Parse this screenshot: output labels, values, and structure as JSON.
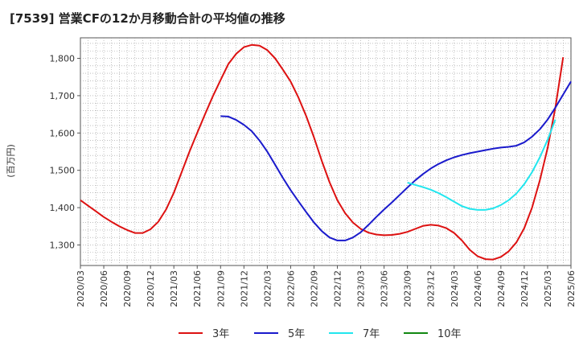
{
  "title": "[7539]  営業CFの12か月移動合計の平均値の推移",
  "chart_data": {
    "type": "line",
    "ylabel": "(百万円)",
    "ylim": [
      1245,
      1855
    ],
    "yticks": [
      1300,
      1400,
      1500,
      1600,
      1700,
      1800
    ],
    "ytick_labels": [
      "1,300",
      "1,400",
      "1,500",
      "1,600",
      "1,700",
      "1,800"
    ],
    "x_start": "2020-03",
    "x_end": "2025-06",
    "x_ticks": [
      "2020/03",
      "2020/06",
      "2020/09",
      "2020/12",
      "2021/03",
      "2021/06",
      "2021/09",
      "2021/12",
      "2022/03",
      "2022/06",
      "2022/09",
      "2022/12",
      "2023/03",
      "2023/06",
      "2023/09",
      "2023/12",
      "2024/03",
      "2024/06",
      "2024/09",
      "2024/12",
      "2025/03",
      "2025/06"
    ],
    "grid": true,
    "legend_position": "bottom",
    "series": [
      {
        "name": "3年",
        "color": "#dd1111",
        "start": "2020-03",
        "values": [
          1420,
          1405,
          1390,
          1375,
          1362,
          1350,
          1340,
          1332,
          1332,
          1342,
          1362,
          1395,
          1440,
          1495,
          1550,
          1600,
          1650,
          1698,
          1742,
          1785,
          1812,
          1830,
          1836,
          1834,
          1822,
          1800,
          1770,
          1738,
          1695,
          1645,
          1588,
          1525,
          1468,
          1420,
          1385,
          1360,
          1343,
          1333,
          1328,
          1326,
          1327,
          1330,
          1335,
          1343,
          1351,
          1354,
          1352,
          1345,
          1332,
          1312,
          1287,
          1270,
          1262,
          1261,
          1268,
          1283,
          1307,
          1345,
          1400,
          1473,
          1560,
          1668,
          1803
        ]
      },
      {
        "name": "5年",
        "color": "#1a1acc",
        "start": "2021-09",
        "values": [
          1645,
          1644,
          1635,
          1622,
          1605,
          1580,
          1550,
          1515,
          1480,
          1447,
          1417,
          1388,
          1360,
          1337,
          1320,
          1312,
          1312,
          1320,
          1334,
          1354,
          1375,
          1395,
          1414,
          1434,
          1454,
          1473,
          1490,
          1505,
          1517,
          1527,
          1535,
          1541,
          1546,
          1550,
          1554,
          1558,
          1561,
          1563,
          1566,
          1575,
          1590,
          1610,
          1636,
          1668,
          1703,
          1738
        ]
      },
      {
        "name": "7年",
        "color": "#22e6ee",
        "start": "2023-09",
        "values": [
          1467,
          1461,
          1455,
          1448,
          1439,
          1428,
          1416,
          1404,
          1397,
          1394,
          1394,
          1398,
          1407,
          1420,
          1438,
          1463,
          1495,
          1535,
          1582,
          1636
        ]
      },
      {
        "name": "10年",
        "color": "#118811",
        "start": "2025-03",
        "values": []
      }
    ]
  }
}
